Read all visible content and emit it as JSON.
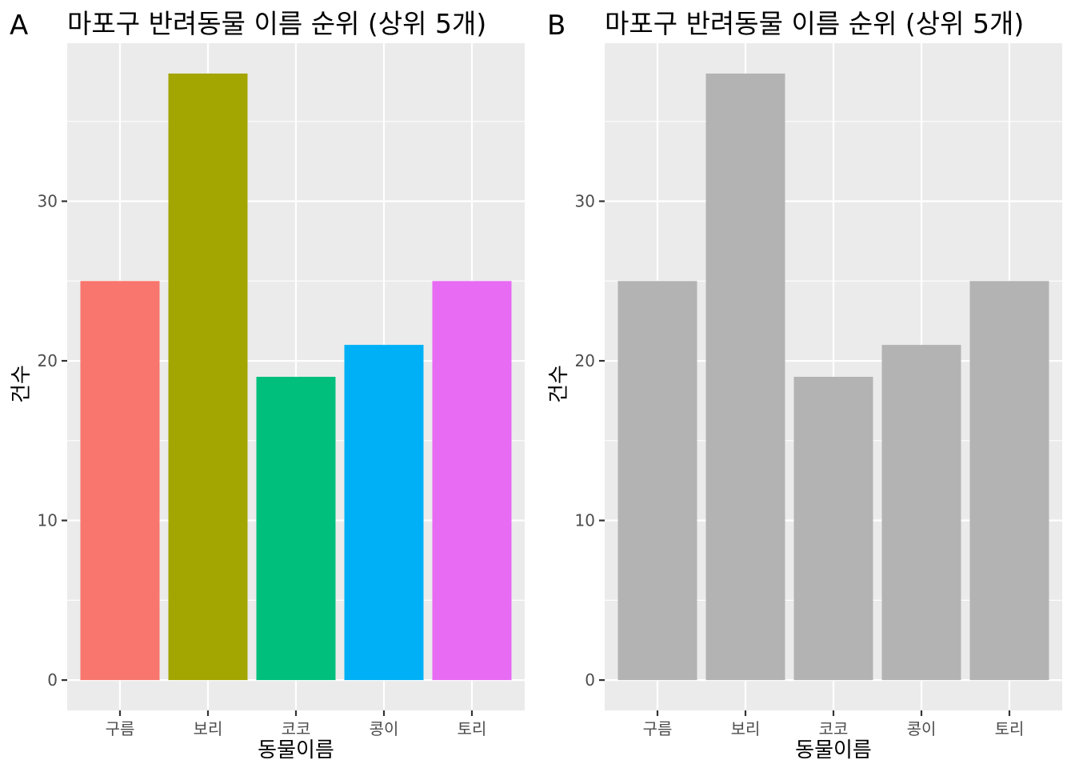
{
  "chart_data": [
    {
      "type": "bar",
      "tag": "A",
      "title": "마포구 반려동물 이름 순위 (상위 5개)",
      "xlabel": "동물이름",
      "ylabel": "건수",
      "categories": [
        "구름",
        "보리",
        "코코",
        "콩이",
        "토리"
      ],
      "values": [
        25,
        38,
        19,
        21,
        25
      ],
      "colors": [
        "#F8766D",
        "#A3A500",
        "#00BF7D",
        "#00B0F6",
        "#E76BF3"
      ],
      "yticks": [
        0,
        10,
        20,
        30
      ],
      "ylim": [
        -1.9,
        39.9
      ],
      "grid": true,
      "panel_background": "#EBEBEB"
    },
    {
      "type": "bar",
      "tag": "B",
      "title": "마포구 반려동물 이름 순위 (상위 5개)",
      "xlabel": "동물이름",
      "ylabel": "건수",
      "categories": [
        "구름",
        "보리",
        "코코",
        "콩이",
        "토리"
      ],
      "values": [
        25,
        38,
        19,
        21,
        25
      ],
      "colors": [
        "#B3B3B3",
        "#B3B3B3",
        "#B3B3B3",
        "#B3B3B3",
        "#B3B3B3"
      ],
      "yticks": [
        0,
        10,
        20,
        30
      ],
      "ylim": [
        -1.9,
        39.9
      ],
      "grid": true,
      "panel_background": "#EBEBEB"
    }
  ]
}
